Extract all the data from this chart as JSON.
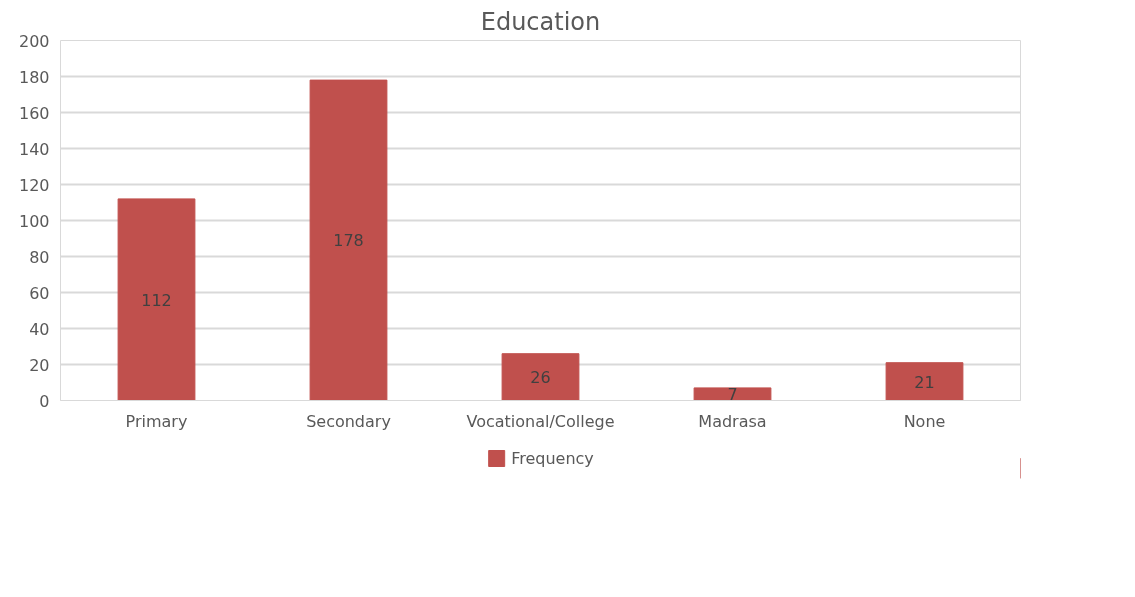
{
  "chart_data": {
    "type": "bar",
    "title": "Education",
    "categories": [
      "Primary",
      "Secondary",
      "Vocational/College",
      "Madrasa",
      "None"
    ],
    "series": [
      {
        "name": "Frequency",
        "color": "#c0504d",
        "values": [
          112,
          178,
          26,
          7,
          21
        ]
      }
    ],
    "ylim": [
      0,
      200
    ],
    "yticks": [
      0,
      20,
      40,
      60,
      80,
      100,
      120,
      140,
      160,
      180,
      200
    ],
    "grid": "y",
    "legend": "bottom",
    "data_labels": true
  }
}
